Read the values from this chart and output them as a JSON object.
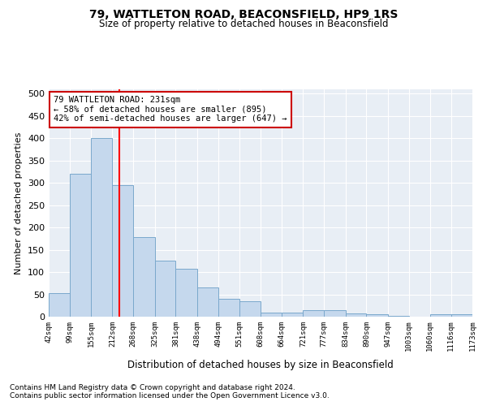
{
  "title": "79, WATTLETON ROAD, BEACONSFIELD, HP9 1RS",
  "subtitle": "Size of property relative to detached houses in Beaconsfield",
  "xlabel": "Distribution of detached houses by size in Beaconsfield",
  "ylabel": "Number of detached properties",
  "footnote1": "Contains HM Land Registry data © Crown copyright and database right 2024.",
  "footnote2": "Contains public sector information licensed under the Open Government Licence v3.0.",
  "annotation_title": "79 WATTLETON ROAD: 231sqm",
  "annotation_line1": "← 58% of detached houses are smaller (895)",
  "annotation_line2": "42% of semi-detached houses are larger (647) →",
  "property_sqm": 231,
  "bar_left_edges": [
    42,
    99,
    155,
    212,
    268,
    325,
    381,
    438,
    494,
    551,
    608,
    664,
    721,
    777,
    834,
    890,
    947,
    1003,
    1060,
    1116
  ],
  "bar_widths": [
    57,
    56,
    57,
    56,
    57,
    56,
    57,
    56,
    57,
    57,
    56,
    57,
    56,
    57,
    56,
    57,
    56,
    57,
    56,
    57
  ],
  "bar_heights": [
    53,
    320,
    400,
    295,
    178,
    125,
    107,
    65,
    40,
    35,
    10,
    10,
    14,
    15,
    8,
    5,
    2,
    0,
    5,
    6
  ],
  "bar_color": "#c5d8ed",
  "bar_edge_color": "#7aa8cc",
  "redline_x": 231,
  "annotation_box_color": "#ffffff",
  "annotation_box_edge_color": "#cc0000",
  "background_color": "#e8eef5",
  "ylim": [
    0,
    510
  ],
  "yticks": [
    0,
    50,
    100,
    150,
    200,
    250,
    300,
    350,
    400,
    450,
    500
  ],
  "tick_labels": [
    "42sqm",
    "99sqm",
    "155sqm",
    "212sqm",
    "268sqm",
    "325sqm",
    "381sqm",
    "438sqm",
    "494sqm",
    "551sqm",
    "608sqm",
    "664sqm",
    "721sqm",
    "777sqm",
    "834sqm",
    "890sqm",
    "947sqm",
    "1003sqm",
    "1060sqm",
    "1116sqm",
    "1173sqm"
  ]
}
